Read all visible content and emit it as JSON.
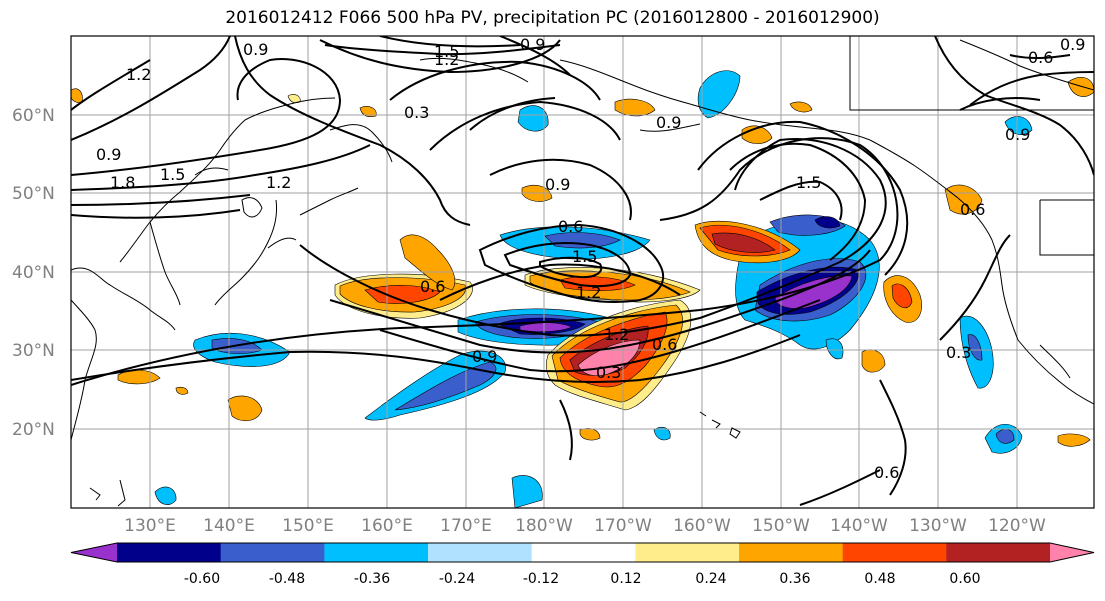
{
  "title": "2016012412 F066 500 hPa PV, precipitation PC (2016012800 - 2016012900)",
  "lat_labels": [
    "60°N",
    "50°N",
    "40°N",
    "30°N",
    "20°N"
  ],
  "lon_labels": [
    "130°E",
    "140°E",
    "150°E",
    "160°E",
    "170°E",
    "180°W",
    "170°W",
    "160°W",
    "150°W",
    "140°W",
    "130°W",
    "120°W"
  ],
  "contour_labels": [
    "1.2",
    "0.9",
    "1.5",
    "1.2",
    "0.9",
    "0.3",
    "0.9",
    "1.8",
    "1.5",
    "1.2",
    "0.9",
    "0.6",
    "1.5",
    "1.2",
    "0.6",
    "1.2",
    "0.9",
    "0.6",
    "0.3",
    "0.9",
    "1.5",
    "0.9",
    "0.3",
    "0.6",
    "0.9",
    "0.6",
    "0.6"
  ],
  "colorbar": {
    "levels": [
      "-0.60",
      "-0.48",
      "-0.36",
      "-0.24",
      "-0.12",
      "0.12",
      "0.24",
      "0.36",
      "0.48",
      "0.60"
    ],
    "colors": [
      "#9932cc",
      "#00008b",
      "#3a5fcd",
      "#00bfff",
      "#b0e2ff",
      "#ffffff",
      "#ffec8b",
      "#ffa500",
      "#ff4500",
      "#b22222",
      "#ff82ab"
    ]
  }
}
